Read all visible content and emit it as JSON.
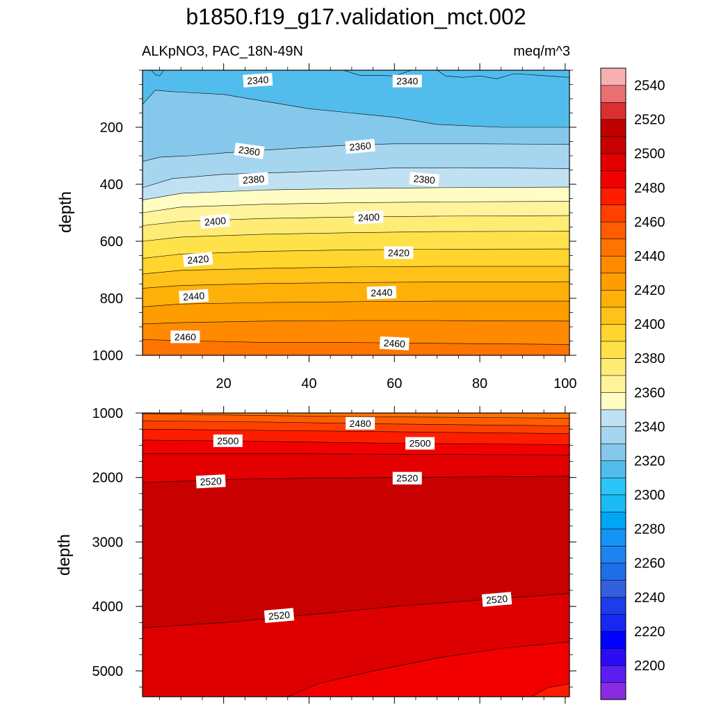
{
  "figure": {
    "title": "b1850.f19_g17.validation_mct.002",
    "left_subtitle": "ALKpNO3, PAC_18N-49N",
    "right_subtitle": "meq/m^3"
  },
  "chart_data": [
    {
      "type": "contour",
      "panel": "upper",
      "ylabel": "depth",
      "xlim": [
        1,
        101
      ],
      "ylim": [
        1000,
        0
      ],
      "x_ticks": [
        20,
        40,
        60,
        80,
        100
      ],
      "y_ticks": [
        200,
        400,
        600,
        800,
        1000
      ],
      "x_tick_labels": [
        "20",
        "40",
        "60",
        "80",
        "100"
      ],
      "y_tick_labels": [
        "200",
        "400",
        "600",
        "800",
        "1000"
      ],
      "contour_interval": 10,
      "contours": [
        {
          "level": 2330,
          "fill": "#52bdec",
          "points": [
            [
              1,
              0
            ],
            [
              3,
              -1
            ],
            [
              4,
              15
            ],
            [
              5,
              20
            ],
            [
              6,
              0
            ],
            [
              48,
              0
            ],
            [
              52,
              18
            ],
            [
              56,
              18
            ],
            [
              60,
              20
            ],
            [
              64,
              0
            ],
            [
              70,
              0
            ],
            [
              72,
              20
            ],
            [
              76,
              25
            ],
            [
              80,
              20
            ],
            [
              84,
              30
            ],
            [
              88,
              12
            ],
            [
              96,
              20
            ],
            [
              101,
              25
            ],
            [
              101,
              0
            ]
          ]
        },
        {
          "level": 2340,
          "fill": "#86c7ec",
          "points": [
            [
              1,
              120
            ],
            [
              4,
              70
            ],
            [
              8,
              75
            ],
            [
              20,
              85
            ],
            [
              30,
              110
            ],
            [
              40,
              135
            ],
            [
              50,
              150
            ],
            [
              60,
              165
            ],
            [
              70,
              190
            ],
            [
              85,
              200
            ],
            [
              101,
              200
            ]
          ]
        },
        {
          "level": 2350,
          "fill": "#a6d5ef",
          "points": [
            [
              1,
              320
            ],
            [
              5,
              305
            ],
            [
              12,
              300
            ],
            [
              20,
              290
            ],
            [
              35,
              275
            ],
            [
              50,
              262
            ],
            [
              60,
              258
            ],
            [
              80,
              258
            ],
            [
              101,
              260
            ]
          ]
        },
        {
          "level": 2360,
          "fill": "#c0e1f2",
          "points": [
            [
              1,
              412
            ],
            [
              8,
              380
            ],
            [
              20,
              365
            ],
            [
              35,
              358
            ],
            [
              50,
              350
            ],
            [
              60,
              343
            ],
            [
              75,
              342
            ],
            [
              101,
              345
            ]
          ]
        },
        {
          "level": 2370,
          "fill": "#fffcc4",
          "points": [
            [
              1,
              455
            ],
            [
              10,
              432
            ],
            [
              30,
              420
            ],
            [
              50,
              415
            ],
            [
              70,
              412
            ],
            [
              101,
              410
            ]
          ]
        },
        {
          "level": 2380,
          "fill": "#fff49c",
          "points": [
            [
              1,
              500
            ],
            [
              10,
              480
            ],
            [
              30,
              470
            ],
            [
              50,
              465
            ],
            [
              70,
              462
            ],
            [
              101,
              460
            ]
          ]
        },
        {
          "level": 2390,
          "fill": "#ffec75",
          "points": [
            [
              1,
              545
            ],
            [
              10,
              530
            ],
            [
              30,
              520
            ],
            [
              50,
              515
            ],
            [
              70,
              512
            ],
            [
              101,
              510
            ]
          ]
        },
        {
          "level": 2400,
          "fill": "#ffe24a",
          "points": [
            [
              1,
              600
            ],
            [
              10,
              585
            ],
            [
              30,
              575
            ],
            [
              50,
              570
            ],
            [
              70,
              566
            ],
            [
              101,
              565
            ]
          ]
        },
        {
          "level": 2410,
          "fill": "#ffd52e",
          "points": [
            [
              1,
              660
            ],
            [
              10,
              645
            ],
            [
              30,
              635
            ],
            [
              50,
              630
            ],
            [
              70,
              628
            ],
            [
              101,
              627
            ]
          ]
        },
        {
          "level": 2420,
          "fill": "#ffc218",
          "points": [
            [
              1,
              715
            ],
            [
              10,
              702
            ],
            [
              30,
              695
            ],
            [
              50,
              690
            ],
            [
              70,
              688
            ],
            [
              101,
              688
            ]
          ]
        },
        {
          "level": 2430,
          "fill": "#ffb008",
          "points": [
            [
              1,
              765
            ],
            [
              10,
              755
            ],
            [
              30,
              748
            ],
            [
              50,
              745
            ],
            [
              70,
              743
            ],
            [
              101,
              742
            ]
          ]
        },
        {
          "level": 2440,
          "fill": "#ff9d00",
          "points": [
            [
              1,
              830
            ],
            [
              10,
              820
            ],
            [
              30,
              815
            ],
            [
              50,
              812
            ],
            [
              70,
              810
            ],
            [
              101,
              810
            ]
          ]
        },
        {
          "level": 2450,
          "fill": "#ff8a00",
          "points": [
            [
              1,
              890
            ],
            [
              10,
              885
            ],
            [
              30,
              880
            ],
            [
              50,
              878
            ],
            [
              70,
              878
            ],
            [
              101,
              880
            ]
          ]
        },
        {
          "level": 2460,
          "fill": "#ff7400",
          "points": [
            [
              1,
              945
            ],
            [
              15,
              950
            ],
            [
              30,
              955
            ],
            [
              50,
              955
            ],
            [
              70,
              958
            ],
            [
              101,
              962
            ]
          ]
        }
      ],
      "labels": [
        {
          "text": "2340",
          "x": 28,
          "y": 35,
          "angle": -4
        },
        {
          "text": "2340",
          "x": 63,
          "y": 38,
          "angle": 0
        },
        {
          "text": "2360",
          "x": 26,
          "y": 283,
          "angle": 8
        },
        {
          "text": "2360",
          "x": 52,
          "y": 267,
          "angle": -5
        },
        {
          "text": "2380",
          "x": 27,
          "y": 383,
          "angle": -4
        },
        {
          "text": "2380",
          "x": 67,
          "y": 383,
          "angle": 5
        },
        {
          "text": "2400",
          "x": 18,
          "y": 530,
          "angle": -5
        },
        {
          "text": "2400",
          "x": 54,
          "y": 516,
          "angle": -3
        },
        {
          "text": "2420",
          "x": 14,
          "y": 664,
          "angle": -5
        },
        {
          "text": "2420",
          "x": 61,
          "y": 640,
          "angle": 0
        },
        {
          "text": "2440",
          "x": 13,
          "y": 793,
          "angle": -4
        },
        {
          "text": "2440",
          "x": 57,
          "y": 780,
          "angle": -2
        },
        {
          "text": "2460",
          "x": 11,
          "y": 935,
          "angle": 0
        },
        {
          "text": "2460",
          "x": 60,
          "y": 958,
          "angle": 3
        }
      ]
    },
    {
      "type": "contour",
      "panel": "lower",
      "ylabel": "depth",
      "xlim": [
        1,
        101
      ],
      "ylim": [
        5400,
        1000
      ],
      "x_ticks": [
        20,
        40,
        60,
        80,
        100
      ],
      "y_ticks": [
        1000,
        2000,
        3000,
        4000,
        5000
      ],
      "x_tick_labels": [],
      "y_tick_labels": [
        "1000",
        "2000",
        "3000",
        "4000",
        "5000"
      ],
      "contour_interval": 10,
      "contours": [
        {
          "level": 2460,
          "fill": "#ff7400",
          "points": [
            [
              1,
              1000
            ],
            [
              101,
              1000
            ]
          ]
        },
        {
          "level": 2470,
          "fill": "#ff5d00",
          "points": [
            [
              1,
              1010
            ],
            [
              30,
              1040
            ],
            [
              60,
              1060
            ],
            [
              101,
              1080
            ]
          ]
        },
        {
          "level": 2480,
          "fill": "#ff4000",
          "points": [
            [
              1,
              1120
            ],
            [
              30,
              1140
            ],
            [
              60,
              1170
            ],
            [
              101,
              1200
            ]
          ]
        },
        {
          "level": 2490,
          "fill": "#ff1d00",
          "points": [
            [
              1,
              1250
            ],
            [
              30,
              1270
            ],
            [
              60,
              1290
            ],
            [
              101,
              1320
            ]
          ]
        },
        {
          "level": 2500,
          "fill": "#f20000",
          "points": [
            [
              1,
              1420
            ],
            [
              30,
              1440
            ],
            [
              60,
              1470
            ],
            [
              101,
              1490
            ]
          ]
        },
        {
          "level": 2510,
          "fill": "#e20000",
          "points": [
            [
              1,
              1630
            ],
            [
              30,
              1630
            ],
            [
              60,
              1640
            ],
            [
              101,
              1650
            ]
          ]
        },
        {
          "level": 2520,
          "fill": "#c80000",
          "points": [
            [
              1,
              2080
            ],
            [
              20,
              2030
            ],
            [
              40,
              2010
            ],
            [
              60,
              2000
            ],
            [
              80,
              1990
            ],
            [
              101,
              1980
            ]
          ]
        },
        {
          "level": 2520,
          "fill": "#de0000",
          "points": [
            [
              1,
              4330
            ],
            [
              20,
              4250
            ],
            [
              40,
              4130
            ],
            [
              60,
              4000
            ],
            [
              80,
              3900
            ],
            [
              101,
              3800
            ]
          ]
        },
        {
          "level": 2510,
          "fill": "#f20000",
          "points": [
            [
              35,
              5400
            ],
            [
              42,
              5200
            ],
            [
              55,
              5000
            ],
            [
              70,
              4800
            ],
            [
              85,
              4650
            ],
            [
              101,
              4550
            ]
          ]
        },
        {
          "level": 2500,
          "fill": "#ff1d00",
          "points": [
            [
              92,
              5400
            ],
            [
              96,
              5260
            ],
            [
              101,
              5200
            ]
          ]
        }
      ],
      "labels": [
        {
          "text": "2480",
          "x": 52,
          "y": 1160,
          "angle": 0
        },
        {
          "text": "2500",
          "x": 21,
          "y": 1430,
          "angle": 0
        },
        {
          "text": "2500",
          "x": 66,
          "y": 1470,
          "angle": 0
        },
        {
          "text": "2520",
          "x": 17,
          "y": 2060,
          "angle": -3
        },
        {
          "text": "2520",
          "x": 63,
          "y": 2010,
          "angle": 0
        },
        {
          "text": "2520",
          "x": 33,
          "y": 4140,
          "angle": -5
        },
        {
          "text": "2520",
          "x": 84,
          "y": 3890,
          "angle": -5
        }
      ]
    }
  ],
  "colorbar": {
    "colors": [
      "#8a2be2",
      "#5a1ef0",
      "#2a0cf5",
      "#0000ff",
      "#1628f2",
      "#1f3ce9",
      "#3460dd",
      "#1e6ee8",
      "#1c84f0",
      "#1494f5",
      "#00a5f5",
      "#1cbaf5",
      "#2ac6f8",
      "#52bdec",
      "#86c7ec",
      "#a6d5ef",
      "#c0e1f2",
      "#fffcc4",
      "#fff49c",
      "#ffec75",
      "#ffe24a",
      "#ffd52e",
      "#ffc218",
      "#ffb008",
      "#ff9d00",
      "#ff8a00",
      "#ff7400",
      "#ff5d00",
      "#ff4000",
      "#ff1d00",
      "#f20000",
      "#e20000",
      "#c80000",
      "#c00000",
      "#dc3030",
      "#e87070",
      "#f7b0b0"
    ],
    "labels": [
      "2200",
      "2220",
      "2240",
      "2260",
      "2280",
      "2300",
      "2320",
      "2340",
      "2360",
      "2380",
      "2400",
      "2420",
      "2440",
      "2460",
      "2480",
      "2500",
      "2520",
      "2540"
    ]
  }
}
